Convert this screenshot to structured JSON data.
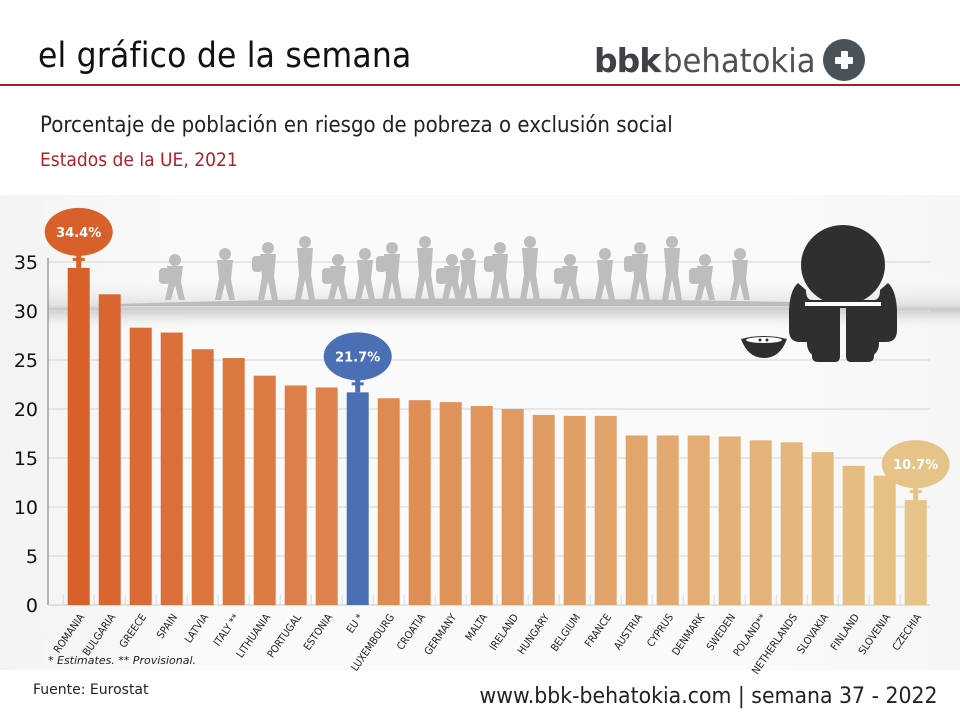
{
  "header": {
    "title": "el gráfico de la semana",
    "logo_bold": "bbk",
    "logo_light": "behatokia",
    "logo_icon": "plus-circle-icon"
  },
  "subtitle": "Porcentaje de población en riesgo de pobreza o exclusión social",
  "subsubtitle": "Estados de la UE, 2021",
  "footer": {
    "source": "Fuente: Eurostat",
    "url": "www.bbk-behatokia.com | semana 37 - 2022"
  },
  "colors": {
    "accent_red": "#a5202a",
    "eu_blue": "#4a6fb5",
    "bar_start": "#d8602a",
    "bar_end": "#e6c388"
  },
  "chart_data": {
    "type": "bar",
    "title": "Porcentaje de población en riesgo de pobreza o exclusión social",
    "subtitle": "Estados de la UE, 2021",
    "xlabel": "",
    "ylabel": "",
    "ylim": [
      0,
      35
    ],
    "yticks": [
      0,
      5,
      10,
      15,
      20,
      25,
      30,
      35
    ],
    "grid": true,
    "categories": [
      "ROMANIA",
      "BULGARIA",
      "GREECE",
      "SPAIN",
      "LATVIA",
      "ITALY **",
      "LITHUANIA",
      "PORTUGAL",
      "ESTONIA",
      "EU *",
      "LUXEMBOURG",
      "CROATIA",
      "GERMANY",
      "MALTA",
      "IRELAND",
      "HUNGARY",
      "BELGIUM",
      "FRANCE",
      "AUSTRIA",
      "CYPRUS",
      "DENMARK",
      "SWEDEN",
      "POLAND**",
      "NETHERLANDS",
      "SLOVAKIA",
      "FINLAND",
      "SLOVENIA",
      "CZECHIA"
    ],
    "values": [
      34.4,
      31.7,
      28.3,
      27.8,
      26.1,
      25.2,
      23.4,
      22.4,
      22.2,
      21.7,
      21.1,
      20.9,
      20.7,
      20.3,
      20.0,
      19.4,
      19.3,
      19.3,
      17.3,
      17.3,
      17.3,
      17.2,
      16.8,
      16.6,
      15.6,
      14.2,
      13.2,
      10.7
    ],
    "highlight": "EU *",
    "callouts": [
      {
        "category": "ROMANIA",
        "label": "34.4%"
      },
      {
        "category": "EU *",
        "label": "21.7%"
      },
      {
        "category": "CZECHIA",
        "label": "10.7%"
      }
    ],
    "note": "* Estimates. ** Provisional."
  }
}
